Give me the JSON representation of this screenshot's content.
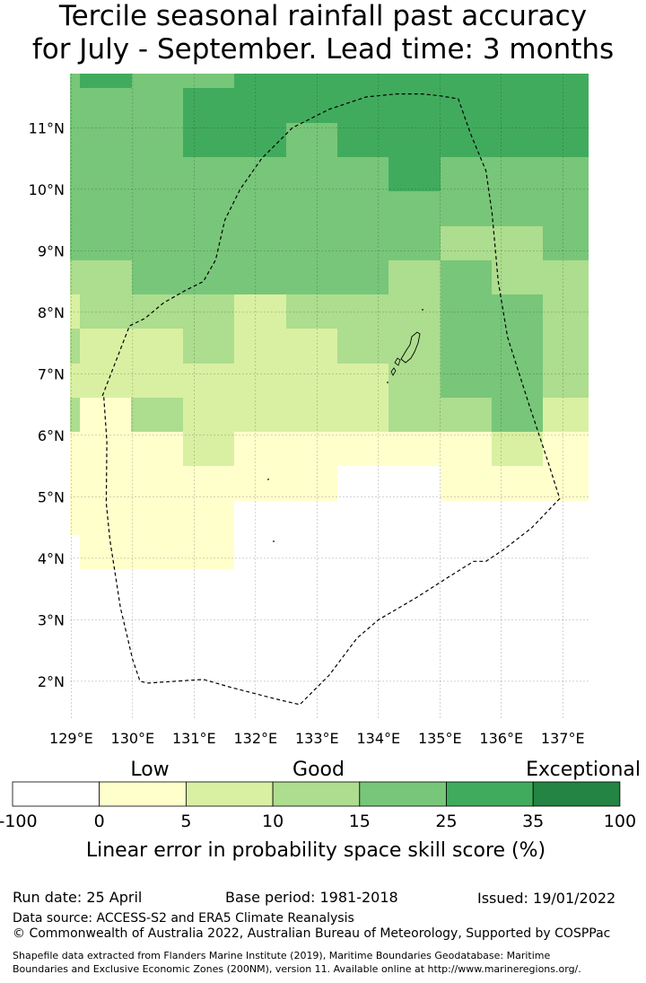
{
  "title": {
    "line1": "Tercile seasonal rainfall past accuracy",
    "line2": "for July - September. Lead time: 3 months"
  },
  "map": {
    "lon_range": [
      128.98,
      137.42
    ],
    "lat_range": [
      1.4,
      11.88
    ],
    "lon_ticks": [
      129,
      130,
      131,
      132,
      133,
      134,
      135,
      136,
      137
    ],
    "lon_tick_labels": [
      "129°E",
      "130°E",
      "131°E",
      "132°E",
      "133°E",
      "134°E",
      "135°E",
      "136°E",
      "137°E"
    ],
    "lat_ticks": [
      2,
      3,
      4,
      5,
      6,
      7,
      8,
      9,
      10,
      11
    ],
    "lat_tick_labels": [
      "2°N",
      "3°N",
      "4°N",
      "5°N",
      "6°N",
      "7°N",
      "8°N",
      "9°N",
      "10°N",
      "11°N"
    ],
    "grid": true,
    "eez_boundary": [
      [
        129.53,
        6.62
      ],
      [
        129.58,
        5.9
      ],
      [
        129.57,
        4.9
      ],
      [
        129.63,
        4.3
      ],
      [
        129.8,
        3.2
      ],
      [
        130.0,
        2.35
      ],
      [
        130.12,
        2.0
      ],
      [
        130.25,
        1.97
      ],
      [
        131.15,
        2.03
      ],
      [
        131.6,
        1.9
      ],
      [
        132.3,
        1.72
      ],
      [
        132.72,
        1.62
      ],
      [
        133.2,
        2.1
      ],
      [
        133.65,
        2.7
      ],
      [
        134.0,
        3.0
      ],
      [
        134.6,
        3.35
      ],
      [
        135.15,
        3.7
      ],
      [
        135.55,
        3.95
      ],
      [
        135.75,
        3.95
      ],
      [
        136.05,
        4.15
      ],
      [
        136.5,
        4.5
      ],
      [
        136.95,
        4.97
      ],
      [
        136.75,
        5.6
      ],
      [
        136.45,
        6.5
      ],
      [
        136.1,
        7.6
      ],
      [
        135.95,
        8.5
      ],
      [
        135.85,
        9.6
      ],
      [
        135.75,
        10.3
      ],
      [
        135.5,
        10.9
      ],
      [
        135.3,
        11.47
      ],
      [
        135.0,
        11.52
      ],
      [
        134.7,
        11.55
      ],
      [
        134.3,
        11.55
      ],
      [
        133.8,
        11.5
      ],
      [
        133.2,
        11.3
      ],
      [
        132.6,
        11.0
      ],
      [
        132.1,
        10.5
      ],
      [
        131.75,
        10.0
      ],
      [
        131.5,
        9.5
      ],
      [
        131.35,
        8.85
      ],
      [
        131.15,
        8.5
      ],
      [
        130.85,
        8.35
      ],
      [
        130.5,
        8.15
      ],
      [
        130.2,
        7.9
      ],
      [
        129.95,
        7.78
      ],
      [
        129.5,
        6.62
      ]
    ]
  },
  "legend": {
    "category_labels": [
      "Low",
      "Good",
      "Exceptional"
    ],
    "bounds": [
      "-100",
      "0",
      "5",
      "10",
      "15",
      "25",
      "35",
      "100"
    ],
    "colors": [
      "#ffffff",
      "#ffffcc",
      "#d9f0a3",
      "#addd8e",
      "#78c679",
      "#41ab5d",
      "#238443"
    ],
    "label": "Linear error in probability space skill score (%)"
  },
  "footer": {
    "run_date": "Run date: 25 April",
    "base_period": "Base period: 1981-2018",
    "issued": "Issued: 19/01/2022",
    "data_source": "Data source: ACCESS-S2 and ERA5 Climate Reanalysis",
    "copyright": "© Commonwealth of Australia 2022, Australian Bureau of Meteorology, Supported by COSPPac",
    "shapefile_line1": "Shapefile data extracted from Flanders Marine Institute (2019), Maritime Boundaries Geodatabase: Maritime",
    "shapefile_line2": "Boundaries and Exclusive Economic Zones (200NM), version 11. Available online at http://www.marineregions.org/."
  }
}
